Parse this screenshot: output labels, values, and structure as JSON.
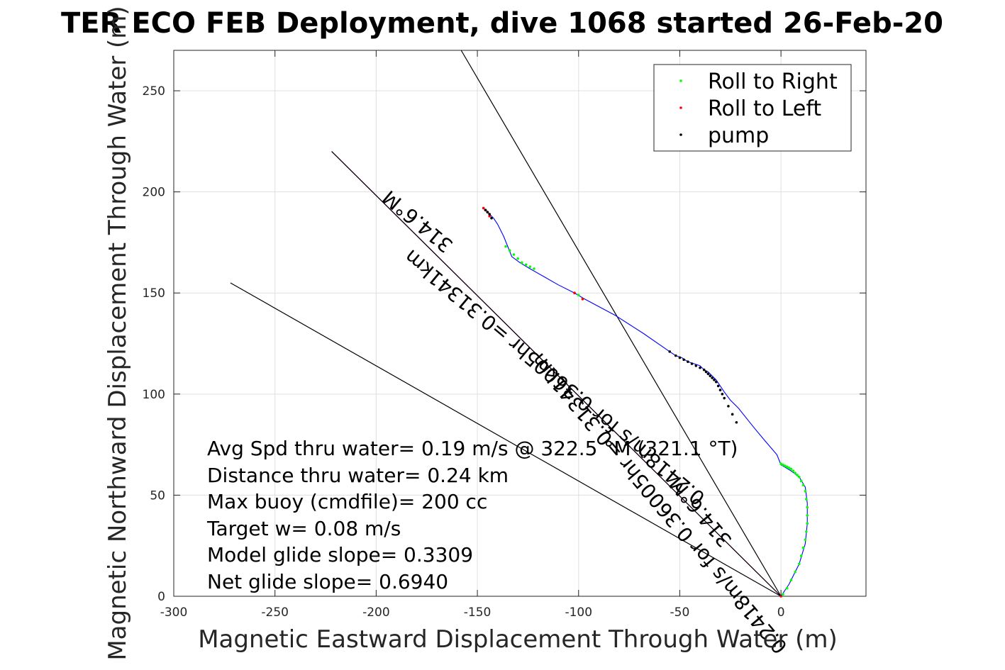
{
  "chart_data": {
    "type": "line",
    "title": "TER ECO FEB Deployment, dive 1068 started 26-Feb-20",
    "xlabel": "Magnetic Eastward Displacement Through Water (m)",
    "ylabel": "Magnetic Northward Displacement Through Water (m)",
    "xlim": [
      -300,
      42
    ],
    "ylim": [
      0,
      270
    ],
    "xticks": [
      -300,
      -250,
      -200,
      -150,
      -100,
      -50,
      0
    ],
    "xtick_labels": [
      "-300",
      "-250",
      "-200",
      "-150",
      "-100",
      "-50",
      "0"
    ],
    "yticks": [
      0,
      50,
      100,
      150,
      200,
      250
    ],
    "ytick_labels": [
      "0",
      "50",
      "100",
      "150",
      "200",
      "250"
    ],
    "grid": true,
    "legend_position": "top-right",
    "legend": [
      {
        "label": "Roll to Right",
        "color": "#00ff00"
      },
      {
        "label": "Roll to Left",
        "color": "#ff0000"
      },
      {
        "label": "pump",
        "color": "#000000"
      }
    ],
    "track": {
      "name": "",
      "color": "#0000ff",
      "x": [
        0,
        4,
        9,
        12,
        13,
        13,
        12,
        9,
        5,
        0,
        -2,
        -8,
        -13,
        -17,
        -21,
        -25,
        -28,
        -30,
        -32,
        -34,
        -36,
        -38,
        -40,
        -43,
        -46,
        -49,
        -52,
        -55,
        -68,
        -82,
        -97,
        -102,
        -110,
        -117,
        -124,
        -129,
        -133,
        -135,
        -137,
        -140,
        -142,
        -145,
        -147
      ],
      "y": [
        0,
        6,
        16,
        26,
        36,
        46,
        54,
        59,
        62,
        65,
        70,
        77,
        83,
        88,
        93,
        97,
        101,
        104,
        107,
        109,
        111,
        112,
        114,
        115,
        116,
        118,
        119,
        121,
        130,
        139,
        147,
        150,
        154,
        158,
        162,
        165,
        168,
        173,
        178,
        184,
        187,
        190,
        192
      ]
    },
    "roll_right_x": [
      1,
      3,
      5,
      7,
      9,
      10,
      11,
      12,
      12.5,
      13,
      13,
      13,
      12.5,
      12,
      11,
      10,
      9,
      8,
      7,
      6,
      5,
      4,
      3,
      2,
      1,
      0,
      -122,
      -124,
      -126,
      -128,
      -130,
      -132,
      -134,
      -136,
      -98,
      -100
    ],
    "roll_right_y": [
      1,
      4,
      8,
      12,
      16,
      20,
      24,
      28,
      32,
      36,
      40,
      44,
      48,
      52,
      55,
      57,
      59,
      60,
      61,
      62,
      63,
      63.5,
      64,
      64.5,
      65,
      65.5,
      162,
      163,
      164,
      165,
      167,
      169,
      171,
      173,
      147,
      149
    ],
    "roll_left_x": [
      0,
      -147,
      -146,
      -145,
      -144,
      -102,
      -98
    ],
    "roll_left_y": [
      0,
      192,
      191,
      190,
      188,
      150,
      147
    ],
    "pump_x": [
      -22,
      -24,
      -26,
      -28,
      -29,
      -30,
      -31,
      -32,
      -33,
      -34,
      -35,
      -36,
      -37,
      -38,
      -40,
      -42,
      -44,
      -46,
      -48,
      -50,
      -52,
      -55,
      -146,
      -145,
      -144,
      -143
    ],
    "pump_y": [
      86,
      90,
      94,
      98,
      100,
      102,
      104,
      106,
      107,
      108,
      109,
      110,
      111,
      112,
      113,
      114,
      115,
      116,
      117,
      118,
      119,
      121,
      191,
      190,
      189,
      187
    ],
    "lines": [
      {
        "name": "",
        "color": "#000000",
        "x": [
          0,
          -272
        ],
        "y": [
          0,
          155
        ]
      },
      {
        "name": "",
        "color": "#000000",
        "x": [
          0,
          -158
        ],
        "y": [
          0,
          270
        ]
      },
      {
        "name": "",
        "color": "#ff00ff",
        "x": [
          0,
          -222
        ],
        "y": [
          0,
          220
        ]
      },
      {
        "name": "",
        "color": "#000000",
        "x": [
          0,
          -222
        ],
        "y": [
          0,
          220
        ]
      }
    ],
    "annotations": [
      "Avg Spd thru water=  0.19 m/s @ 322.5 °M (321.1 °T)",
      "Distance thru water=  0.24 km",
      "Max buoy (cmdfile)= 200 cc",
      "Target w= 0.08 m/s",
      "Model glide slope= 0.3309",
      "Net glide slope= 0.6940"
    ],
    "rotated_labels": [
      "314.6°M",
      "0.2418m/s for 0.36005hr =0.31341km",
      "314.6°M",
      "0.2418m/s for 0.36005hr =0.31341km"
    ]
  }
}
